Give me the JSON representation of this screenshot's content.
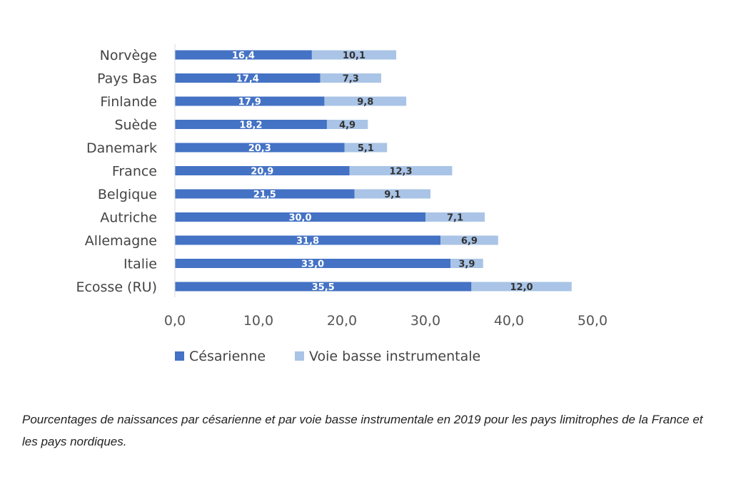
{
  "chart_data": {
    "type": "bar",
    "orientation": "horizontal",
    "stacked": true,
    "categories": [
      "Norvège",
      "Pays Bas",
      "Finlande",
      "Suède",
      "Danemark",
      "France",
      "Belgique",
      "Autriche",
      "Allemagne",
      "Italie",
      "Ecosse (RU)"
    ],
    "series": [
      {
        "name": "Césarienne",
        "color": "#4472C4",
        "values": [
          16.4,
          17.4,
          17.9,
          18.2,
          20.3,
          20.9,
          21.5,
          30.0,
          31.8,
          33.0,
          35.5
        ],
        "labels": [
          "16,4",
          "17,4",
          "17,9",
          "18,2",
          "20,3",
          "20,9",
          "21,5",
          "30,0",
          "31,8",
          "33,0",
          "35,5"
        ]
      },
      {
        "name": "Voie basse instrumentale",
        "color": "#A9C4E6",
        "values": [
          10.1,
          7.3,
          9.8,
          4.9,
          5.1,
          12.3,
          9.1,
          7.1,
          6.9,
          3.9,
          12.0
        ],
        "labels": [
          "10,1",
          "7,3",
          "9,8",
          "4,9",
          "5,1",
          "12,3",
          "9,1",
          "7,1",
          "6,9",
          "3,9",
          "12,0"
        ]
      }
    ],
    "xlim": [
      0,
      50
    ],
    "xticks": [
      0,
      10,
      20,
      30,
      40,
      50
    ],
    "xtick_labels": [
      "0,0",
      "10,0",
      "20,0",
      "30,0",
      "40,0",
      "50,0"
    ],
    "grid": false,
    "legend_position": "bottom"
  },
  "caption": "Pourcentages de naissances par césarienne et par voie basse instrumentale en 2019 pour les pays limitrophes de la France et les pays nordiques."
}
